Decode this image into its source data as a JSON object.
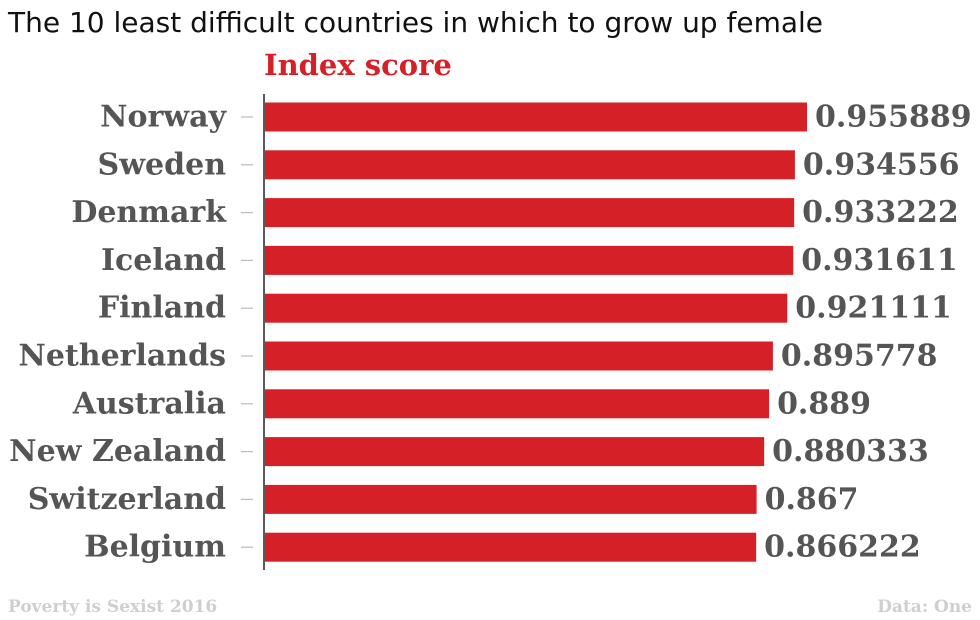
{
  "chart_data": {
    "type": "bar",
    "orientation": "horizontal",
    "title": "The 10 least difficult countries in which to grow up female",
    "subtitle": "Index score",
    "categories": [
      "Norway",
      "Sweden",
      "Denmark",
      "Iceland",
      "Finland",
      "Netherlands",
      "Australia",
      "New Zealand",
      "Switzerland",
      "Belgium"
    ],
    "values": [
      0.955889,
      0.934556,
      0.933222,
      0.931611,
      0.921111,
      0.895778,
      0.889,
      0.880333,
      0.867,
      0.866222
    ],
    "value_labels": [
      "0.955889",
      "0.934556",
      "0.933222",
      "0.931611",
      "0.921111",
      "0.895778",
      "0.889",
      "0.880333",
      "0.867",
      "0.866222"
    ],
    "xlim": [
      0,
      0.955889
    ],
    "grid": false,
    "bar_color": "#d62027",
    "label_color": "#555555"
  },
  "footer": {
    "source_left": "Poverty is Sexist 2016",
    "source_right": "Data: One"
  }
}
